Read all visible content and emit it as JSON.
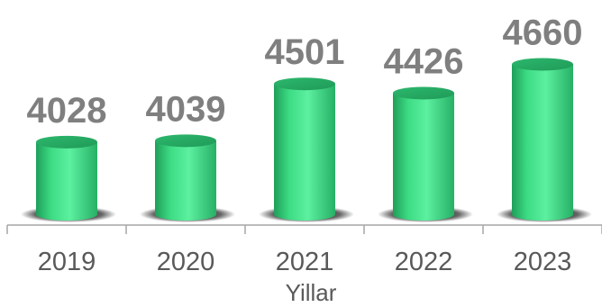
{
  "chart_data": {
    "type": "bar",
    "categories": [
      "2019",
      "2020",
      "2021",
      "2022",
      "2023"
    ],
    "values": [
      4028,
      4039,
      4501,
      4426,
      4660
    ],
    "xlabel": "Yillar",
    "ylabel": "",
    "ylim": [
      3500,
      4700
    ],
    "grid": false,
    "legend": "none",
    "bar_color": "#3ddc84",
    "label_color": "#7f7f7f",
    "axis_color": "#a6a6a6"
  }
}
